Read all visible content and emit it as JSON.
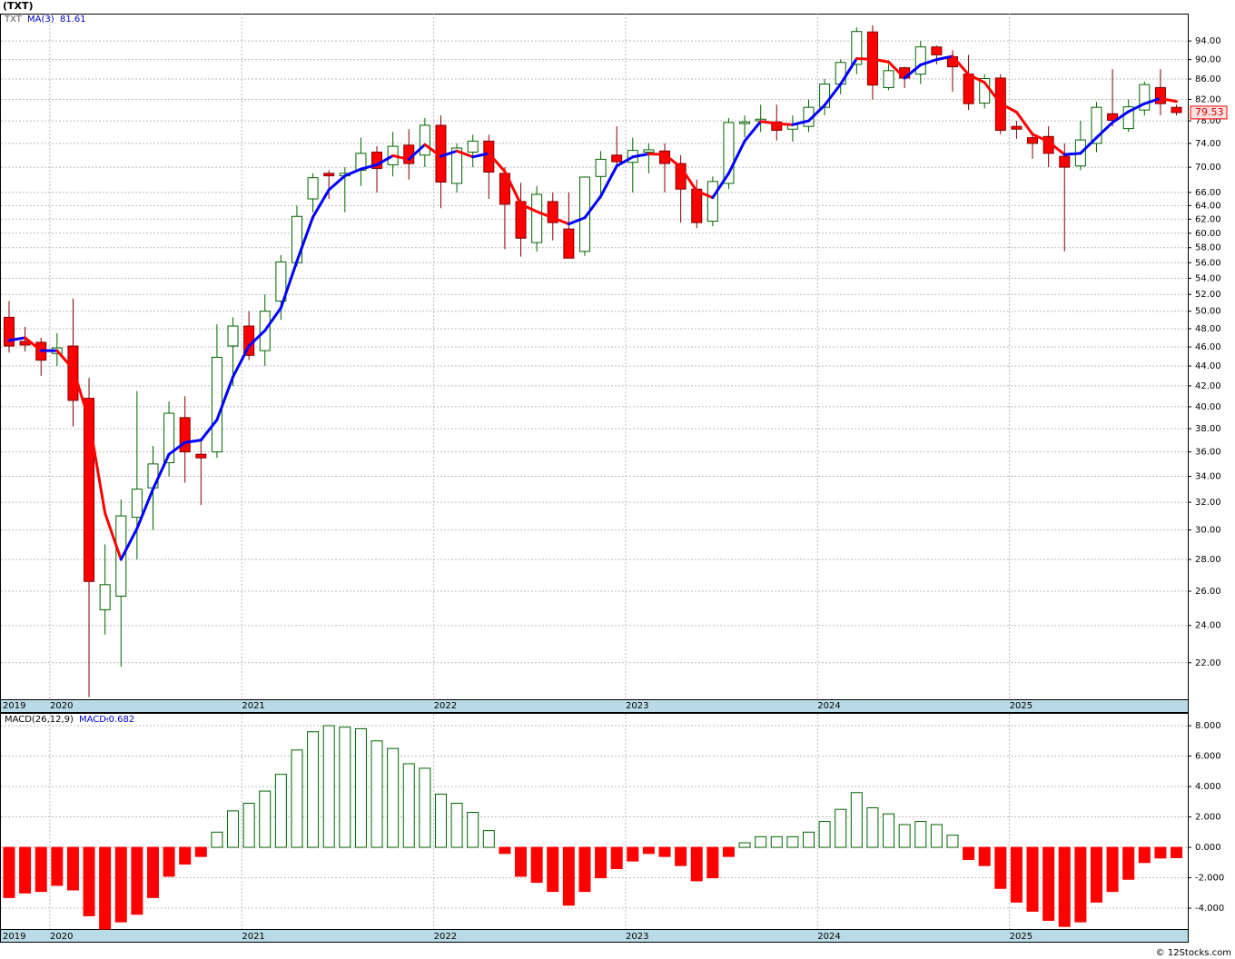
{
  "chart_data": [
    {
      "type": "candlestick",
      "title": "(TXT)",
      "symbol": "TXT",
      "ma_name": "MA(3)",
      "log_y": true,
      "grid": true,
      "categories": [
        "2019",
        null,
        null,
        "2020",
        null,
        null,
        null,
        null,
        null,
        null,
        null,
        null,
        null,
        null,
        null,
        "2021",
        null,
        null,
        null,
        null,
        null,
        null,
        null,
        null,
        null,
        null,
        null,
        "2022",
        null,
        null,
        null,
        null,
        null,
        null,
        null,
        null,
        null,
        null,
        null,
        "2023",
        null,
        null,
        null,
        null,
        null,
        null,
        null,
        null,
        null,
        null,
        null,
        "2024",
        null,
        null,
        null,
        null,
        null,
        null,
        null,
        null,
        null,
        null,
        null,
        "2025",
        null,
        null,
        null,
        null,
        null,
        null,
        null,
        null,
        null,
        null
      ],
      "open": [
        49.3,
        46.6,
        46.5,
        45.3,
        46.1,
        40.8,
        24.9,
        25.7,
        30.9,
        33.1,
        35.1,
        39.0,
        35.8,
        36.0,
        46.1,
        48.3,
        45.6,
        51.2,
        56.0,
        65.0,
        69.0,
        68.6,
        69.5,
        72.5,
        70.4,
        73.7,
        72.0,
        77.2,
        67.4,
        72.5,
        74.4,
        69.0,
        64.6,
        58.7,
        64.6,
        60.6,
        57.5,
        68.5,
        72.0,
        70.8,
        72.5,
        72.7,
        70.6,
        66.5,
        61.7,
        67.4,
        77.5,
        78.0,
        77.8,
        76.5,
        77.0,
        80.5,
        85.0,
        89.0,
        96.0,
        84.3,
        88.3,
        87.0,
        92.7,
        90.6,
        87.0,
        81.3,
        86.2,
        77.0,
        75.0,
        75.2,
        71.8,
        70.2,
        74.0,
        79.3,
        76.6,
        80.0,
        84.3,
        80.5
      ],
      "high": [
        51.2,
        48.2,
        47.0,
        47.5,
        51.5,
        42.8,
        29.0,
        32.2,
        41.5,
        36.5,
        40.5,
        41.0,
        37.0,
        48.5,
        49.3,
        50.0,
        52.0,
        57.0,
        64.0,
        69.0,
        69.5,
        70.0,
        75.0,
        73.5,
        76.0,
        76.5,
        78.5,
        79.0,
        74.0,
        75.5,
        75.5,
        70.0,
        67.5,
        67.0,
        66.0,
        66.0,
        68.5,
        72.7,
        77.0,
        75.0,
        74.0,
        74.0,
        72.0,
        68.0,
        68.5,
        78.5,
        79.0,
        81.0,
        81.0,
        79.0,
        82.0,
        86.0,
        90.0,
        97.0,
        97.5,
        89.0,
        88.5,
        94.0,
        93.0,
        92.0,
        91.0,
        87.0,
        87.0,
        78.0,
        76.0,
        77.0,
        74.0,
        78.0,
        81.5,
        88.0,
        82.0,
        85.5,
        88.0,
        81.0
      ],
      "low": [
        45.4,
        45.5,
        43.0,
        44.0,
        38.2,
        20.3,
        23.5,
        21.8,
        28.0,
        30.0,
        34.0,
        33.5,
        31.8,
        35.5,
        42.0,
        44.6,
        44.0,
        49.0,
        55.5,
        63.0,
        65.0,
        63.0,
        67.0,
        66.0,
        68.5,
        68.0,
        70.0,
        63.6,
        66.0,
        70.0,
        65.0,
        57.8,
        56.8,
        57.5,
        59.0,
        56.6,
        56.9,
        65.0,
        70.0,
        66.0,
        69.0,
        66.0,
        61.5,
        60.7,
        61.0,
        66.5,
        75.0,
        76.0,
        74.5,
        74.3,
        76.0,
        79.0,
        83.0,
        87.0,
        82.0,
        83.8,
        84.2,
        85.0,
        89.0,
        83.5,
        80.0,
        80.3,
        75.6,
        74.8,
        71.4,
        70.0,
        57.5,
        69.5,
        72.5,
        77.0,
        76.0,
        79.0,
        79.0,
        79.0
      ],
      "close": [
        46.1,
        46.2,
        44.6,
        45.9,
        40.6,
        26.6,
        26.4,
        31.0,
        33.0,
        35.0,
        39.4,
        36.0,
        35.5,
        44.9,
        48.3,
        45.1,
        50.0,
        56.1,
        62.4,
        68.3,
        68.6,
        69.0,
        72.3,
        69.8,
        73.5,
        70.6,
        77.2,
        67.6,
        73.2,
        74.4,
        69.2,
        64.2,
        59.3,
        65.7,
        61.5,
        56.6,
        68.4,
        71.3,
        70.9,
        72.8,
        72.9,
        70.6,
        66.5,
        61.5,
        67.7,
        77.7,
        77.8,
        78.3,
        76.3,
        77.3,
        80.5,
        85.0,
        89.4,
        96.1,
        84.8,
        87.7,
        86.2,
        92.7,
        91.0,
        88.5,
        81.2,
        86.1,
        76.3,
        76.5,
        74.0,
        72.3,
        70.0,
        74.6,
        80.5,
        78.1,
        80.6,
        84.9,
        81.2,
        79.53
      ],
      "ma": [
        46.7,
        47.0,
        45.6,
        45.6,
        43.7,
        38.8,
        31.2,
        28.0,
        30.1,
        33.0,
        35.8,
        36.8,
        37.0,
        38.8,
        42.9,
        46.1,
        47.8,
        50.4,
        56.2,
        62.3,
        66.4,
        68.6,
        69.7,
        70.4,
        71.9,
        71.3,
        73.8,
        71.8,
        72.7,
        71.7,
        72.3,
        69.3,
        64.2,
        63.1,
        62.2,
        61.3,
        62.2,
        65.4,
        70.2,
        71.7,
        72.2,
        72.1,
        70.0,
        66.2,
        65.2,
        69.0,
        74.4,
        77.9,
        77.5,
        77.3,
        78.0,
        80.9,
        85.0,
        90.2,
        90.1,
        89.5,
        86.2,
        88.9,
        90.0,
        90.7,
        86.9,
        85.3,
        81.2,
        79.6,
        75.6,
        74.3,
        72.1,
        72.3,
        75.0,
        77.7,
        79.7,
        81.2,
        82.2,
        81.61
      ],
      "up_color": "#006400",
      "down_color": "#ff0000",
      "ma_rising_color": "#0000ff",
      "ma_falling_color": "#ff0000",
      "ylim": [
        20.2,
        100.2
      ],
      "yticks": [
        {
          "value": 22,
          "label": "22.00"
        },
        {
          "value": 24,
          "label": "24.00"
        },
        {
          "value": 26,
          "label": "26.00"
        },
        {
          "value": 28,
          "label": "28.00"
        },
        {
          "value": 30,
          "label": "30.00"
        },
        {
          "value": 32,
          "label": "32.00"
        },
        {
          "value": 34,
          "label": "34.00"
        },
        {
          "value": 36,
          "label": "36.00"
        },
        {
          "value": 38,
          "label": "38.00"
        },
        {
          "value": 40,
          "label": "40.00"
        },
        {
          "value": 42,
          "label": "42.00"
        },
        {
          "value": 44,
          "label": "44.00"
        },
        {
          "value": 46,
          "label": "46.00"
        },
        {
          "value": 48,
          "label": "48.00"
        },
        {
          "value": 50,
          "label": "50.00"
        },
        {
          "value": 52,
          "label": "52.00"
        },
        {
          "value": 54,
          "label": "54.00"
        },
        {
          "value": 56,
          "label": "56.00"
        },
        {
          "value": 58,
          "label": "58.00"
        },
        {
          "value": 60,
          "label": "60.00"
        },
        {
          "value": 62,
          "label": "62.00"
        },
        {
          "value": 64,
          "label": "64.00"
        },
        {
          "value": 66,
          "label": "66.00"
        },
        {
          "value": 70,
          "label": "70.00"
        },
        {
          "value": 74,
          "label": "74.00"
        },
        {
          "value": 78,
          "label": "78.00"
        },
        {
          "value": 82,
          "label": "82.00"
        },
        {
          "value": 86,
          "label": "86.00"
        },
        {
          "value": 90,
          "label": "90.00"
        },
        {
          "value": 94,
          "label": "94.00"
        }
      ]
    },
    {
      "type": "bar",
      "title": "MACD(26,12,9)",
      "readout_label": "MACD:",
      "pos_color": "#006400",
      "neg_color": "#ff0000",
      "values": [
        -3.3,
        -3.0,
        -2.9,
        -2.5,
        -2.8,
        -4.5,
        -5.4,
        -4.9,
        -4.4,
        -3.3,
        -1.9,
        -1.1,
        -0.6,
        1.0,
        2.4,
        2.9,
        3.7,
        4.8,
        6.4,
        7.6,
        8.0,
        7.9,
        7.8,
        7.0,
        6.5,
        5.5,
        5.2,
        3.5,
        2.9,
        2.3,
        1.1,
        -0.4,
        -1.9,
        -2.3,
        -2.9,
        -3.8,
        -2.9,
        -2.0,
        -1.4,
        -0.9,
        -0.4,
        -0.6,
        -1.2,
        -2.2,
        -2.0,
        -0.6,
        0.3,
        0.7,
        0.7,
        0.7,
        1.0,
        1.7,
        2.5,
        3.6,
        2.6,
        2.2,
        1.5,
        1.7,
        1.5,
        0.8,
        -0.8,
        -1.2,
        -2.7,
        -3.6,
        -4.2,
        -4.8,
        -5.2,
        -4.9,
        -3.6,
        -2.9,
        -2.1,
        -1.0,
        -0.7,
        -0.682
      ],
      "ylim": [
        -5.37,
        8.84
      ],
      "yticks": [
        {
          "value": 8,
          "label": "8.000"
        },
        {
          "value": 6,
          "label": "6.000"
        },
        {
          "value": 4,
          "label": "4.000"
        },
        {
          "value": 2,
          "label": "2.000"
        },
        {
          "value": 0,
          "label": "0.000"
        },
        {
          "value": -2,
          "label": "-2.000"
        },
        {
          "value": -4,
          "label": "-4.000"
        }
      ]
    }
  ],
  "footer": "© 12Stocks.com"
}
